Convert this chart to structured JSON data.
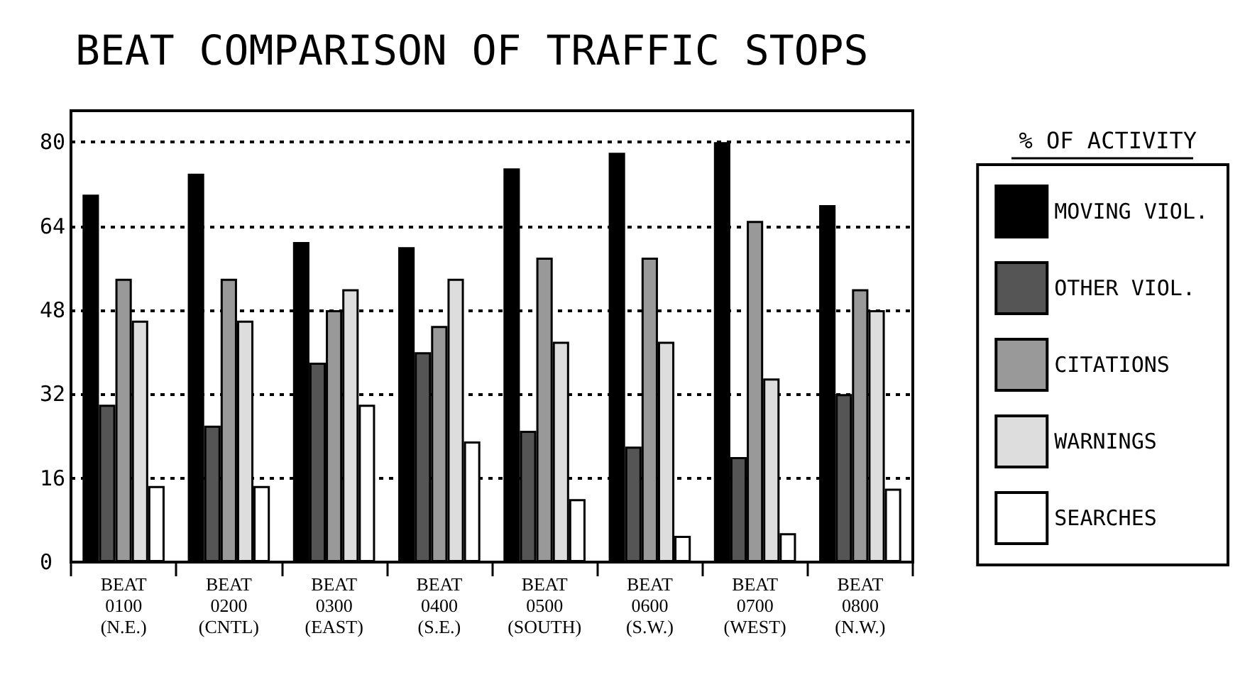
{
  "chart_data": {
    "type": "bar",
    "title": "BEAT COMPARISON OF TRAFFIC STOPS",
    "legend_title": "% OF ACTIVITY",
    "categories": [
      "BEAT\n0100\n(N.E.)",
      "BEAT\n0200\n(CNTL)",
      "BEAT\n0300\n(EAST)",
      "BEAT\n0400\n(S.E.)",
      "BEAT\n0500\n(SOUTH)",
      "BEAT\n0600\n(S.W.)",
      "BEAT\n0700\n(WEST)",
      "BEAT\n0800\n(N.W.)"
    ],
    "series": [
      {
        "name": "MOVING VIOL.",
        "color": "#000000",
        "values": [
          70,
          74,
          61,
          60,
          75,
          78,
          80,
          68
        ]
      },
      {
        "name": "OTHER VIOL.",
        "color": "#555555",
        "values": [
          30,
          26,
          38,
          40,
          25,
          22,
          20,
          32
        ]
      },
      {
        "name": "CITATIONS",
        "color": "#999999",
        "values": [
          54,
          54,
          48,
          45,
          58,
          58,
          65,
          52
        ]
      },
      {
        "name": "WARNINGS",
        "color": "#dddddd",
        "values": [
          46,
          46,
          52,
          54,
          42,
          42,
          35,
          48
        ]
      },
      {
        "name": "SEARCHES",
        "color": "#ffffff",
        "values": [
          14.5,
          14.5,
          30,
          23,
          12,
          5,
          5.5,
          14
        ]
      }
    ],
    "ylim": [
      0,
      86
    ],
    "yticks": [
      0,
      16,
      32,
      48,
      64,
      80
    ],
    "grid": "y",
    "legend": "right"
  }
}
